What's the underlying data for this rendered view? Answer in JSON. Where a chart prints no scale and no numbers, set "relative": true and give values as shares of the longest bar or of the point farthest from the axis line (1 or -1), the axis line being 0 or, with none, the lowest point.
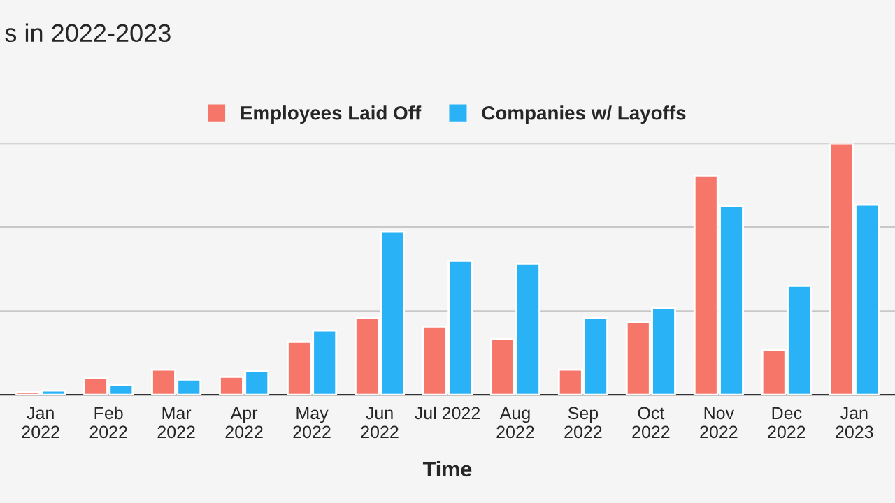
{
  "chart_data": {
    "type": "bar",
    "title": "s in 2022-2023",
    "xlabel": "Time",
    "relative": true,
    "ref_lines": [
      {
        "axis": "y",
        "value": 0.333,
        "color": "#c8c8c8"
      },
      {
        "axis": "y",
        "value": 0.667,
        "color": "#c8c8c8"
      },
      {
        "axis": "y",
        "value": 1,
        "color": "#c8c8c8"
      }
    ],
    "legend": "top",
    "categories": [
      "Jan\n2022",
      "Feb\n2022",
      "Mar\n2022",
      "Apr\n2022",
      "May\n2022",
      "Jun\n2022",
      "Jul 2022",
      "Aug\n2022",
      "Sep\n2022",
      "Oct\n2022",
      "Nov\n2022",
      "Dec\n2022",
      "Jan\n2023"
    ],
    "series": [
      {
        "name": "Employees Laid Off",
        "color": "#f7766a",
        "values": [
          0.011,
          0.067,
          0.1,
          0.072,
          0.211,
          0.306,
          0.272,
          0.222,
          0.1,
          0.289,
          0.872,
          0.178,
          1.0
        ]
      },
      {
        "name": "Companies w/ Layoffs",
        "color": "#29b3f6",
        "values": [
          0.017,
          0.039,
          0.061,
          0.094,
          0.256,
          0.65,
          0.533,
          0.522,
          0.306,
          0.344,
          0.75,
          0.433,
          0.756
        ]
      }
    ]
  }
}
